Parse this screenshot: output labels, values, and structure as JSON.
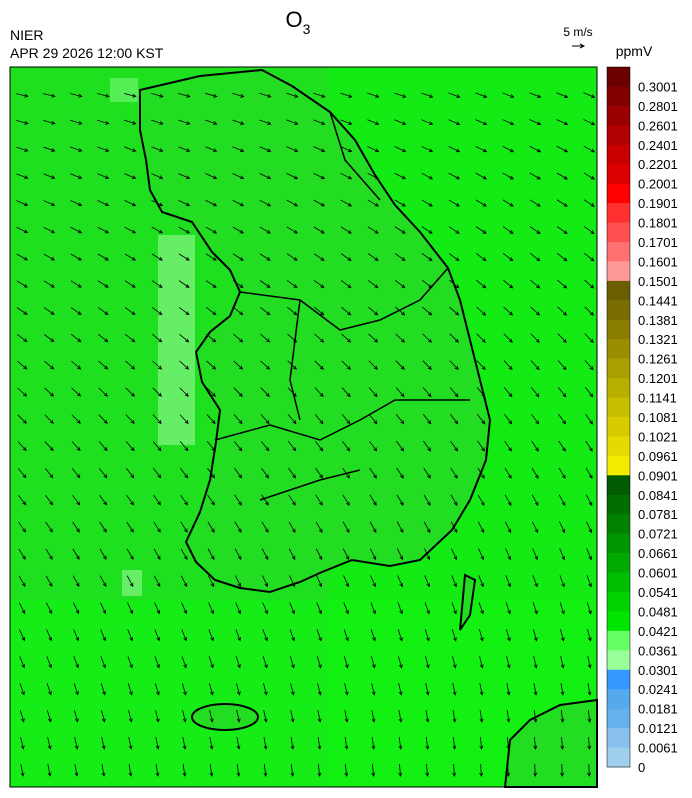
{
  "header": {
    "title": {
      "base": "O",
      "subscript": "3"
    },
    "agency": "NIER",
    "datetime": "APR 29 2026 12:00 KST",
    "wind_scale": "5 m/s"
  },
  "colorbar": {
    "unit": "ppmV",
    "ticks": [
      0.3001,
      0.2801,
      0.2601,
      0.2401,
      0.2201,
      0.2001,
      0.1901,
      0.1801,
      0.1701,
      0.1601,
      0.1501,
      0.1441,
      0.1381,
      0.1321,
      0.1261,
      0.1201,
      0.1141,
      0.1081,
      0.1021,
      0.0961,
      0.0901,
      0.0841,
      0.0781,
      0.0721,
      0.0661,
      0.0601,
      0.0541,
      0.0481,
      0.0421,
      0.0361,
      0.0301,
      0.0241,
      0.0181,
      0.0121,
      0.0061,
      0
    ],
    "colors": [
      "#6b0000",
      "#800000",
      "#990000",
      "#b00000",
      "#c80000",
      "#dd0000",
      "#ff0000",
      "#ff3030",
      "#ff5050",
      "#ff7070",
      "#ff9a9a",
      "#6b5e00",
      "#7a6e00",
      "#8a7e00",
      "#9a8e00",
      "#aa9e00",
      "#b8ae00",
      "#c8be00",
      "#d6cc00",
      "#e4dc00",
      "#f2ec00",
      "#005a00",
      "#006e00",
      "#008200",
      "#009600",
      "#00aa00",
      "#00be00",
      "#00d200",
      "#00e600",
      "#66ff66",
      "#99ff99",
      "#3399ff",
      "#55aaee",
      "#66b0ee",
      "#88c0ee",
      "#a0d0ee"
    ]
  }
}
